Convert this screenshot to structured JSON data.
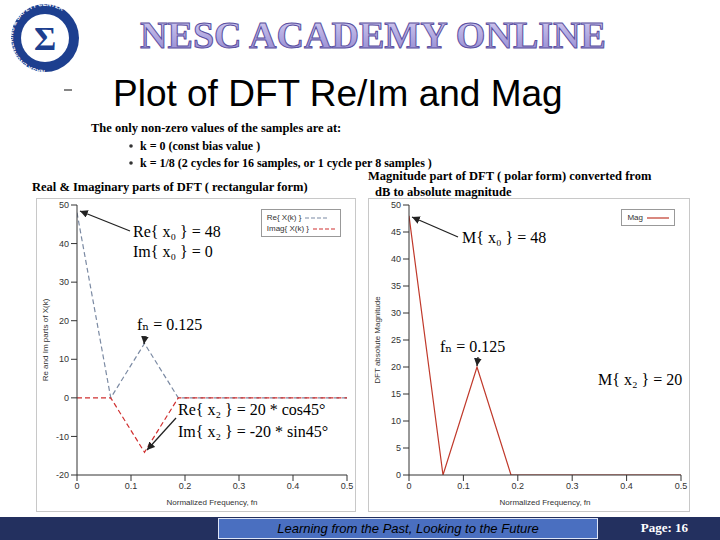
{
  "header": {
    "banner": "NESC ACADEMY ONLINE",
    "title": "Plot of DFT Re/Im and Mag",
    "logo": {
      "symbol": "Σ",
      "ring_text": "NASA ENGINEERING & SAFETY CENTER"
    }
  },
  "bullets": {
    "lead": "The only non-zero values of the samples are at:",
    "items": [
      "k = 0 (const bias value )",
      "k = 1/8 (2 cycles for 16 samples, or 1 cycle per 8 samples )"
    ]
  },
  "chart_data": [
    {
      "type": "line",
      "title": [
        "Real & Imaginary parts of DFT ( rectangular form)"
      ],
      "x_label": "Normalized Frequency, fn",
      "y_label": "Re and Im parts of X(k)",
      "x": [
        0,
        0.0625,
        0.125,
        0.1875,
        0.25,
        0.3125,
        0.375,
        0.4375,
        0.5
      ],
      "xlim": [
        0,
        0.5
      ],
      "xticks": [
        0,
        0.1,
        0.2,
        0.3,
        0.4,
        0.5
      ],
      "ylim": [
        -20,
        50
      ],
      "yticks": [
        -20,
        -10,
        0,
        10,
        20,
        30,
        40,
        50
      ],
      "grid": false,
      "legend": "top-right",
      "series": [
        {
          "name": "Re{ X(k) }",
          "color": "#7b8aa3",
          "line_style": "dashed",
          "values": [
            48,
            0,
            14.1,
            0,
            0,
            0,
            0,
            0,
            0
          ]
        },
        {
          "name": "Imag{ X(k) }",
          "color": "#d03030",
          "line_style": "dashed",
          "values": [
            0,
            0,
            -14.1,
            0,
            0,
            0,
            0,
            0,
            0
          ]
        }
      ],
      "annotations": [
        "Re{ x₀ } = 48",
        "Im{ x₀ } = 0",
        "fₙ = 0.125",
        "Re{ x₂ } = 20 * cos45°",
        "Im{ x₂ } = -20 * sin45°"
      ]
    },
    {
      "type": "line",
      "title": [
        "Magnitude part of DFT ( polar form) converted from",
        "dB to absolute magnitude"
      ],
      "x_label": "Normalized Frequency, fn",
      "y_label": "DFT absolute Magnitude",
      "x": [
        0,
        0.0625,
        0.125,
        0.1875,
        0.25,
        0.3125,
        0.375,
        0.4375,
        0.5
      ],
      "xlim": [
        0,
        0.5
      ],
      "xticks": [
        0,
        0.1,
        0.2,
        0.3,
        0.4,
        0.5
      ],
      "ylim": [
        0,
        50
      ],
      "yticks": [
        0,
        5,
        10,
        15,
        20,
        25,
        30,
        35,
        40,
        45,
        50
      ],
      "grid": false,
      "legend": "top-right",
      "series": [
        {
          "name": "Mag",
          "color": "#c0392b",
          "line_style": "solid",
          "values": [
            48,
            0,
            20,
            0,
            0,
            0,
            0,
            0,
            0
          ]
        }
      ],
      "annotations": [
        "M{ x₀ } = 48",
        "fₙ = 0.125",
        "M{ x₂ } = 20"
      ]
    }
  ],
  "footer": {
    "motto": "Learning from the Past, Looking to the Future",
    "page": "Page: 16"
  }
}
